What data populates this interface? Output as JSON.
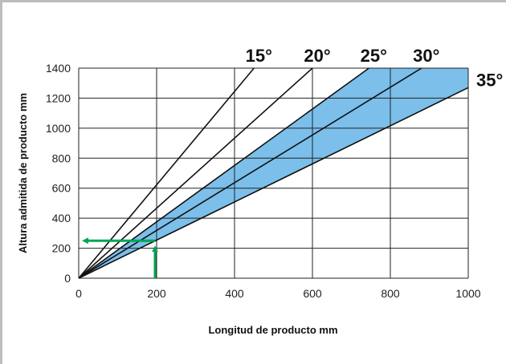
{
  "chart_data": {
    "type": "line",
    "xlabel": "Longitud de producto mm",
    "ylabel": "Altura admitida de producto mm",
    "xlim": [
      0,
      1000
    ],
    "ylim": [
      0,
      1400
    ],
    "x_ticks": [
      "0",
      "200",
      "400",
      "600",
      "800",
      "1000"
    ],
    "y_ticks": [
      "0",
      "200",
      "400",
      "600",
      "800",
      "1000",
      "1200",
      "1400"
    ],
    "grid": true,
    "series": [
      {
        "name": "15°",
        "points": [
          [
            0,
            0
          ],
          [
            450,
            1400
          ]
        ]
      },
      {
        "name": "20°",
        "points": [
          [
            0,
            0
          ],
          [
            600,
            1400
          ]
        ]
      },
      {
        "name": "25°",
        "points": [
          [
            0,
            0
          ],
          [
            745,
            1400
          ]
        ]
      },
      {
        "name": "30°",
        "points": [
          [
            0,
            0
          ],
          [
            880,
            1400
          ]
        ]
      },
      {
        "name": "35°",
        "points": [
          [
            0,
            0
          ],
          [
            1000,
            1270
          ]
        ]
      }
    ],
    "shaded_band": {
      "between": [
        "25°",
        "35°"
      ],
      "color": "#7bbfea"
    },
    "example_arrow": {
      "color": "#00a651",
      "from_x": 200,
      "read_y": 250
    }
  }
}
